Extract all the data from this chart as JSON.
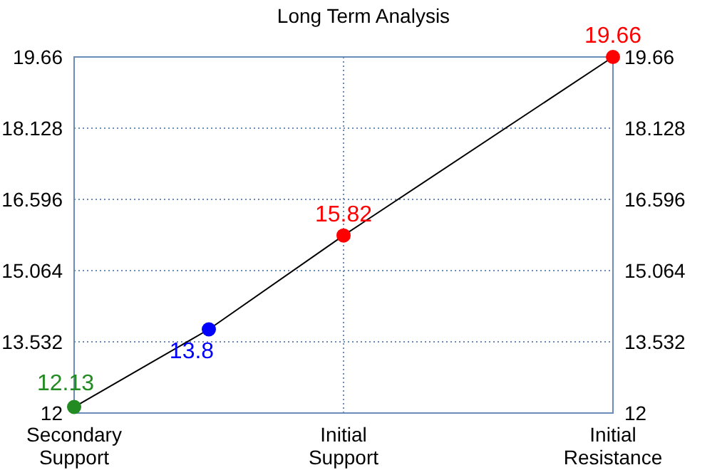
{
  "chart_data": {
    "type": "line",
    "title": "Long Term Analysis",
    "categories": [
      "Secondary Support",
      null,
      "Initial Support",
      null,
      "Initial Resistance"
    ],
    "ylim": [
      12,
      19.66
    ],
    "yticks": [
      12,
      13.532,
      15.064,
      16.596,
      18.128,
      19.66
    ],
    "y2lim": [
      12,
      19.66
    ],
    "y2ticks": [
      12,
      13.532,
      15.064,
      16.596,
      18.128,
      19.66
    ],
    "grid": true,
    "series": [
      {
        "color": "#000000",
        "marker": "none",
        "values": [
          12.13,
          13.8,
          15.82,
          null,
          19.66
        ]
      },
      {
        "type": "scatter",
        "marker": "circle",
        "colors": [
          "#228b22",
          "#0000ff",
          "#ff0000",
          null,
          "#ff0000"
        ],
        "values": [
          12.13,
          13.8,
          15.82,
          null,
          19.66
        ],
        "data_labels": true
      }
    ]
  }
}
